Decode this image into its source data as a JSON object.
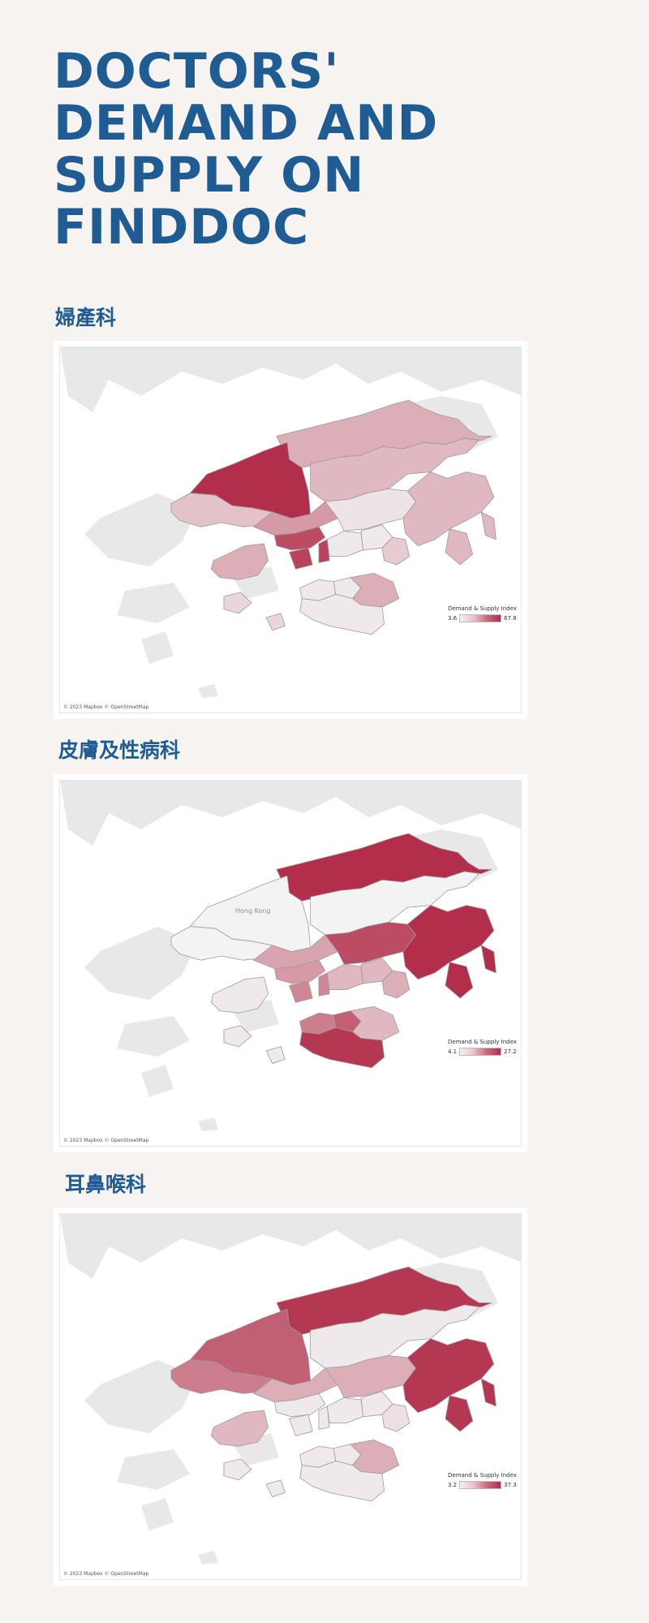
{
  "page_title": "DOCTORS' DEMAND AND SUPPLY ON FINDDOC",
  "legend_title": "Demand & Supply Index",
  "attribution": "© 2023 Mapbox © OpenStreetMap",
  "colors": {
    "title": "#1f5c93",
    "scale_low": "#f3f3f3",
    "scale_high": "#b22e4b",
    "base_land": "#e8e8e8"
  },
  "maps": [
    {
      "title": "婦產科",
      "place_label": "",
      "legend_min": "3.6",
      "legend_max": "67.8",
      "regions": {
        "tuen_mun": 0.25,
        "yuen_long": 1.0,
        "north": 0.35,
        "tai_po": 0.3,
        "sha_tin": 0.08,
        "sai_kung": 0.3,
        "tsuen_wan": 0.45,
        "kwai_tsing": 0.85,
        "sham_shui_po": 0.9,
        "lantau": 0.35,
        "kowloon": 0.05,
        "wong_tai_sin": 0.05,
        "kwun_tong": 0.2,
        "central_western": 0.05,
        "wan_chai": 0.05,
        "eastern": 0.35,
        "southern": 0.05,
        "islands": 0.15
      }
    },
    {
      "title": "皮膚及性病科",
      "place_label": "Hong Kong",
      "legend_min": "4.1",
      "legend_max": "27.2",
      "regions": {
        "tuen_mun": 0.0,
        "yuen_long": 0.0,
        "north": 1.0,
        "tai_po": 0.0,
        "sha_tin": 0.85,
        "sai_kung": 1.0,
        "tsuen_wan": 0.4,
        "kwai_tsing": 0.45,
        "sham_shui_po": 0.55,
        "lantau": 0.05,
        "kowloon": 0.3,
        "wong_tai_sin": 0.3,
        "kwun_tong": 0.35,
        "central_western": 0.6,
        "wan_chai": 0.75,
        "eastern": 0.3,
        "southern": 0.95,
        "islands": 0.05
      }
    },
    {
      "title": "耳鼻喉科",
      "place_label": "",
      "legend_min": "3.2",
      "legend_max": "37.3",
      "regions": {
        "tuen_mun": 0.6,
        "yuen_long": 0.75,
        "north": 0.95,
        "tai_po": 0.05,
        "sha_tin": 0.35,
        "sai_kung": 0.95,
        "tsuen_wan": 0.35,
        "kwai_tsing": 0.05,
        "sham_shui_po": 0.05,
        "lantau": 0.3,
        "kowloon": 0.05,
        "wong_tai_sin": 0.05,
        "kwun_tong": 0.1,
        "central_western": 0.05,
        "wan_chai": 0.05,
        "eastern": 0.35,
        "southern": 0.05,
        "islands": 0.05
      }
    }
  ]
}
